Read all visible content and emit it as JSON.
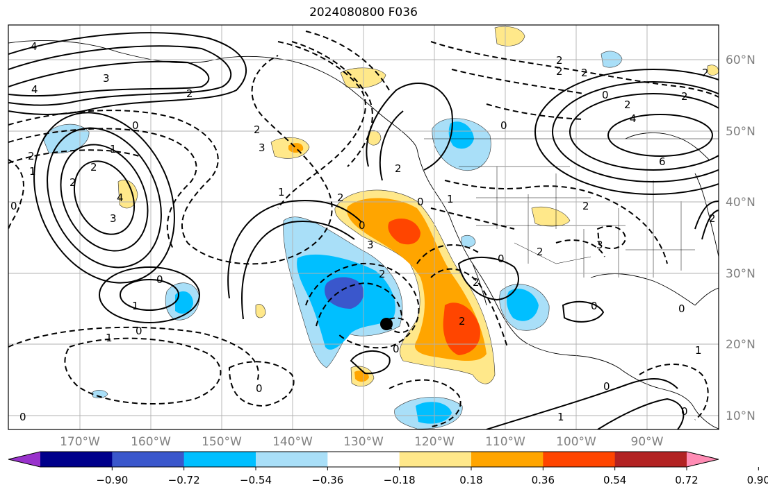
{
  "title": "2024080800 F036",
  "lat_labels": [
    "60°N",
    "50°N",
    "40°N",
    "30°N",
    "20°N",
    "10°N"
  ],
  "lon_labels": [
    "170°W",
    "160°W",
    "150°W",
    "140°W",
    "130°W",
    "120°W",
    "110°W",
    "100°W",
    "90°W"
  ],
  "colorbar": {
    "ticks": [
      "−0.90",
      "−0.72",
      "−0.54",
      "−0.36",
      "−0.18",
      "0.18",
      "0.36",
      "0.54",
      "0.72",
      "0.90"
    ],
    "colors": [
      "#9932cc",
      "#00008b",
      "#3a57cc",
      "#00bfff",
      "#a9dff8",
      "#ffffff",
      "#ffe88a",
      "#ffa500",
      "#ff4500",
      "#b22222",
      "#ff8cb4"
    ],
    "extend": "both"
  },
  "contour_labels": [
    "4",
    "3",
    "4",
    "2",
    "2",
    "0",
    "2",
    "1",
    "2",
    "3",
    "4",
    "3",
    "2",
    "0",
    "1",
    "2",
    "0",
    "2",
    "0",
    "3",
    "2",
    "0",
    "1",
    "2",
    "2",
    "0",
    "2",
    "1",
    "2",
    "2",
    "3",
    "0",
    "0",
    "2",
    "2",
    "0",
    "2",
    "4",
    "2",
    "0",
    "6",
    "1",
    "2",
    "0",
    "1",
    "0",
    "1",
    "0",
    "0",
    "0",
    "2",
    "0",
    "1"
  ],
  "marker": {
    "label": "storm-center",
    "lat": 22.5,
    "lon": -126
  }
}
